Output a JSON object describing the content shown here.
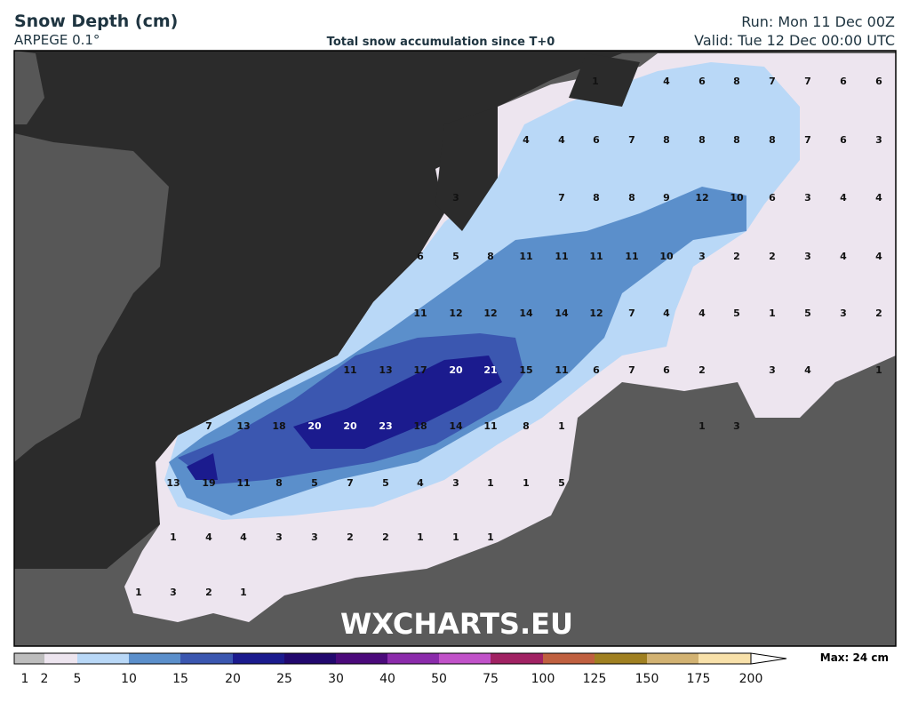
{
  "header": {
    "title": "Snow Depth (cm)",
    "model": "ARPEGE 0.1°",
    "subtitle": "Total snow accumulation since T+0",
    "run": "Run: Mon 11 Dec 00Z",
    "valid": "Valid: Tue 12 Dec 00:00 UTC"
  },
  "watermark": "WXCHARTS.EU",
  "map": {
    "labels": [
      [
        1,
        4,
        6,
        8,
        7,
        7,
        6,
        6
      ],
      [
        4,
        4,
        6,
        7,
        8,
        8,
        8,
        8,
        7,
        6,
        3
      ],
      [
        3,
        7,
        8,
        8,
        9,
        12,
        10,
        6,
        3,
        4,
        4
      ],
      [
        6,
        5,
        8,
        11,
        11,
        11,
        11,
        10,
        3,
        2,
        2,
        3,
        4,
        4
      ],
      [
        11,
        12,
        12,
        14,
        14,
        12,
        7,
        4,
        4,
        5,
        1,
        5,
        3,
        2
      ],
      [
        11,
        13,
        17,
        20,
        21,
        15,
        11,
        6,
        7,
        6,
        2,
        3,
        4,
        1
      ],
      [
        7,
        13,
        18,
        20,
        20,
        23,
        18,
        14,
        11,
        8,
        1,
        1,
        3
      ],
      [
        13,
        19,
        11,
        8,
        5,
        7,
        5,
        4,
        3,
        1,
        1,
        5
      ],
      [
        1,
        4,
        4,
        3,
        3,
        2,
        2,
        1,
        1,
        1
      ],
      [
        1,
        3,
        2,
        1
      ]
    ]
  },
  "legend": {
    "max": "Max: 24 cm",
    "ticks": [
      1,
      2,
      5,
      10,
      15,
      20,
      25,
      30,
      40,
      50,
      75,
      100,
      125,
      150,
      175,
      200
    ],
    "colors": [
      "#bdbdbd",
      "#ede5ef",
      "#b9d8f7",
      "#5b8fcb",
      "#3b57b0",
      "#1b1b8e",
      "#22086e",
      "#4b0a7b",
      "#8b2bab",
      "#c152c9",
      "#a12263",
      "#c06040",
      "#a08021",
      "#d2b272",
      "#f8e1aa"
    ]
  }
}
